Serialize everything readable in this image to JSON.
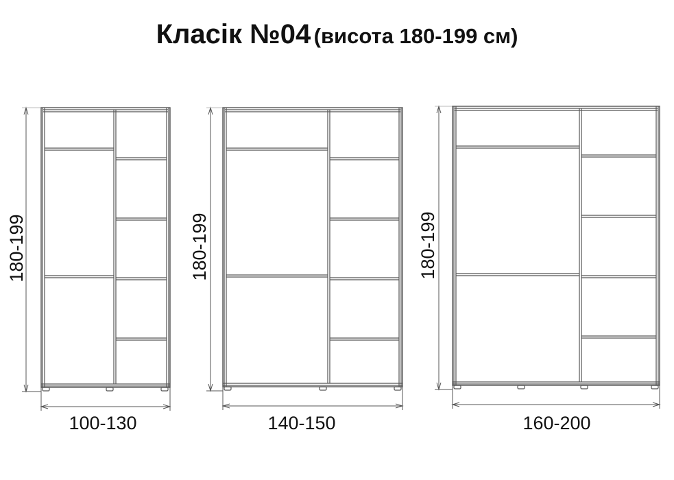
{
  "title": {
    "main": "Класік №04",
    "sub": "(висота 180-199 см)"
  },
  "line_color": "#555555",
  "wardrobes": [
    {
      "height_label": "180-199",
      "width_label": "100-130",
      "left_shelves": 2,
      "right_shelves": 4,
      "feet": 3
    },
    {
      "height_label": "180-199",
      "width_label": "140-150",
      "left_shelves": 2,
      "right_shelves": 4,
      "feet": 3
    },
    {
      "height_label": "180-199",
      "width_label": "160-200",
      "left_shelves": 2,
      "right_shelves": 4,
      "feet": 4
    }
  ]
}
